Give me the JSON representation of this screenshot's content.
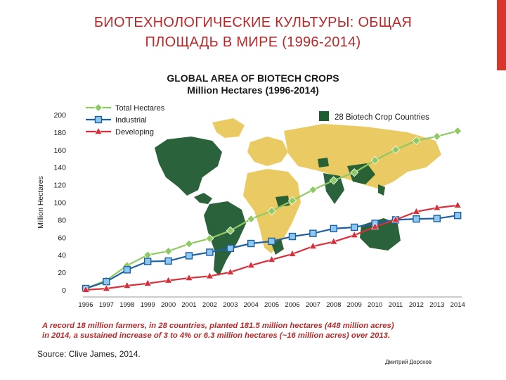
{
  "slide": {
    "title_line1": "БИОТЕХНОЛОГИЧЕСКИЕ КУЛЬТУРЫ: ОБЩАЯ",
    "title_line2": "ПЛОЩАДЬ В МИРЕ (1996-2014)",
    "accent_color": "#d8362c",
    "title_color": "#b8292a",
    "footnote_line1": "A record 18 million farmers, in 28 countries, planted 181.5 million hectares (448 million acres)",
    "footnote_line2": "in 2014, a sustained increase of 3 to 4% or 6.3 million hectares (~16 million acres) over 2013.",
    "source": "Source: Clive James, 2014.",
    "author": "Дмитрий Дорохов"
  },
  "map": {
    "legend_label": "28 Biotech Crop Countries",
    "biotech_color": "#1f5a32",
    "other_color": "#e9c75a"
  },
  "chart_data": {
    "type": "line",
    "title": "GLOBAL AREA OF BIOTECH CROPS",
    "subtitle": "Million Hectares (1996-2014)",
    "xlabel": "",
    "ylabel": "Million Hectares",
    "ylim": [
      0,
      200
    ],
    "yticks": [
      0,
      20,
      40,
      60,
      80,
      100,
      120,
      140,
      160,
      180,
      200
    ],
    "x": [
      "1996",
      "1997",
      "1998",
      "1999",
      "2000",
      "2001",
      "2002",
      "2003",
      "2004",
      "2005",
      "2006",
      "2007",
      "2008",
      "2009",
      "2010",
      "2011",
      "2012",
      "2013",
      "2014"
    ],
    "grid": false,
    "legend_position": "top-left",
    "series": [
      {
        "name": "Total Hectares",
        "color": "#8fc964",
        "marker": "diamond",
        "values": [
          1.7,
          11,
          27.8,
          39.9,
          44.2,
          52.6,
          58.7,
          67.7,
          81,
          90,
          102,
          114.3,
          125,
          134,
          148,
          160,
          170.3,
          175.2,
          181.5
        ]
      },
      {
        "name": "Industrial",
        "color": "#1e5fa3",
        "marker": "square",
        "values": [
          1.6,
          9.5,
          23,
          32.5,
          33,
          39,
          43,
          47.5,
          53,
          55.5,
          61,
          64.5,
          70,
          71.5,
          76,
          80,
          81,
          81.5,
          85
        ]
      },
      {
        "name": "Developing",
        "color": "#d8303a",
        "marker": "triangle",
        "values": [
          0.1,
          1.5,
          4.8,
          7.4,
          10.7,
          13.6,
          15.7,
          20.2,
          28,
          34.5,
          41,
          49.8,
          55,
          62.5,
          72,
          80,
          89.3,
          93.7,
          96.5
        ]
      }
    ]
  }
}
